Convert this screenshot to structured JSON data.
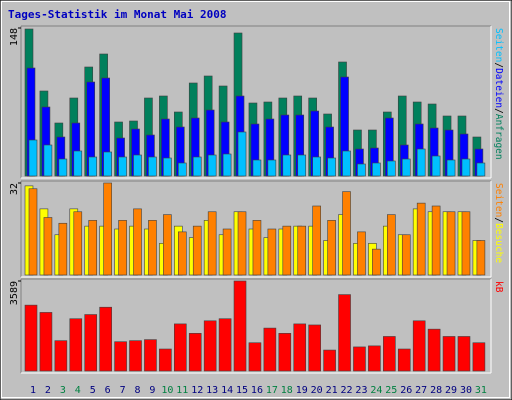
{
  "chart_data": [
    {
      "type": "bar",
      "title": "Tages-Statistik im Monat Mai 2008",
      "ylim": [
        0,
        148
      ],
      "yticks": [
        148
      ],
      "legend_separator": "/",
      "series": [
        {
          "name": "Anfragen",
          "color": "#00805c",
          "values": [
            147,
            85,
            53,
            78,
            109,
            122,
            54,
            55,
            78,
            80,
            64,
            93,
            100,
            90,
            143,
            73,
            74,
            78,
            80,
            78,
            62,
            114,
            46,
            46,
            64,
            80,
            74,
            72,
            60,
            60,
            39
          ]
        },
        {
          "name": "Dateien",
          "color": "#0000ff",
          "values": [
            108,
            69,
            39,
            53,
            94,
            98,
            38,
            47,
            41,
            57,
            49,
            58,
            66,
            54,
            80,
            52,
            57,
            61,
            61,
            65,
            49,
            99,
            27,
            28,
            58,
            31,
            52,
            48,
            46,
            42,
            27
          ]
        },
        {
          "name": "Seiten",
          "color": "#00c0ff",
          "values": [
            36,
            31,
            17,
            25,
            19,
            24,
            19,
            21,
            19,
            18,
            13,
            19,
            21,
            22,
            44,
            16,
            16,
            21,
            21,
            19,
            18,
            25,
            12,
            13,
            15,
            17,
            27,
            20,
            16,
            17,
            13
          ]
        }
      ]
    },
    {
      "type": "bar",
      "ylim": [
        0,
        32
      ],
      "yticks": [
        32
      ],
      "legend_separator": "/",
      "series": [
        {
          "name": "Besuche",
          "color": "#ffff00",
          "values": [
            31,
            23,
            14,
            23,
            17,
            17,
            16,
            17,
            16,
            11,
            17,
            13,
            19,
            14,
            22,
            16,
            13,
            16,
            17,
            17,
            12,
            21,
            11,
            11,
            17,
            14,
            23,
            22,
            22,
            22,
            12
          ]
        },
        {
          "name": "Seiten",
          "color": "#ff8000",
          "values": [
            30,
            20,
            18,
            22,
            19,
            32,
            19,
            23,
            19,
            21,
            15,
            17,
            22,
            16,
            22,
            19,
            16,
            17,
            17,
            24,
            19,
            29,
            15,
            9,
            21,
            14,
            25,
            24,
            22,
            22,
            12
          ]
        }
      ]
    },
    {
      "type": "bar",
      "ylim": [
        0,
        3589
      ],
      "yticks": [
        3589
      ],
      "categories": [
        "1",
        "2",
        "3",
        "4",
        "5",
        "6",
        "7",
        "8",
        "9",
        "10",
        "11",
        "12",
        "13",
        "14",
        "15",
        "16",
        "17",
        "18",
        "19",
        "20",
        "21",
        "22",
        "23",
        "24",
        "25",
        "26",
        "27",
        "28",
        "29",
        "30",
        "31"
      ],
      "category_colors": [
        "#000080",
        "#000080",
        "#008040",
        "#008040",
        "#000080",
        "#000080",
        "#000080",
        "#000080",
        "#000080",
        "#008040",
        "#008040",
        "#000080",
        "#000080",
        "#000080",
        "#000080",
        "#000080",
        "#008040",
        "#008040",
        "#000080",
        "#000080",
        "#000080",
        "#000080",
        "#000080",
        "#008040",
        "#008040",
        "#000080",
        "#000080",
        "#000080",
        "#000080",
        "#000080",
        "#008040"
      ],
      "series": [
        {
          "name": "kB",
          "color": "#ff0000",
          "values": [
            2627,
            2336,
            1210,
            2085,
            2252,
            2544,
            1168,
            1210,
            1252,
            877,
            1878,
            1502,
            2002,
            2085,
            3589,
            1127,
            1711,
            1502,
            1878,
            1836,
            835,
            3047,
            960,
            1002,
            1377,
            877,
            2002,
            1669,
            1377,
            1377,
            1127
          ]
        }
      ]
    }
  ]
}
